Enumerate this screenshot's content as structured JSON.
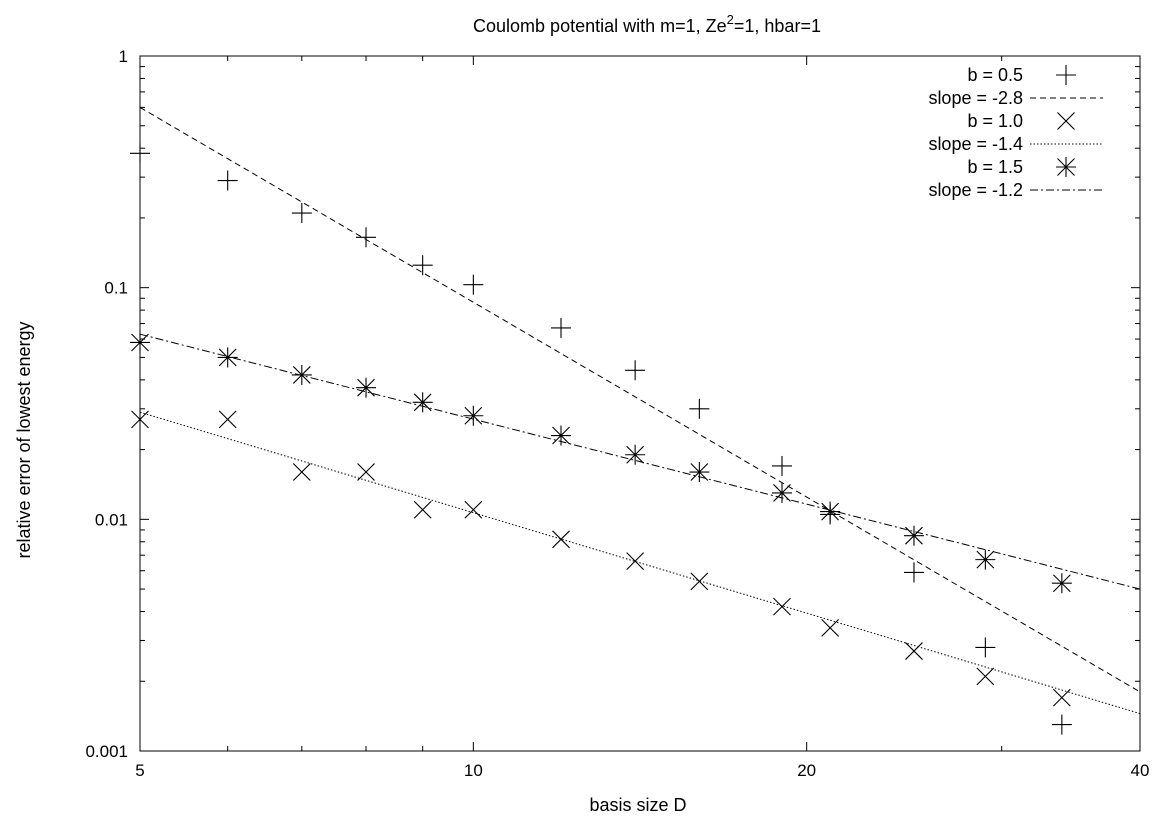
{
  "chart_data": {
    "type": "scatter",
    "title": "Coulomb potential with m=1, Ze",
    "title_superscript": "2",
    "title_suffix": "=1, hbar=1",
    "xlabel": "basis size D",
    "ylabel": "relative error of lowest energy",
    "x_scale": "log",
    "y_scale": "log",
    "xlim": [
      5,
      40
    ],
    "ylim": [
      0.001,
      1
    ],
    "xticks": [
      {
        "value": 5,
        "label": "5"
      },
      {
        "value": 10,
        "label": "10"
      },
      {
        "value": 20,
        "label": "20"
      },
      {
        "value": 40,
        "label": "40"
      }
    ],
    "yticks": [
      {
        "value": 0.001,
        "label": "0.001"
      },
      {
        "value": 0.01,
        "label": "0.01"
      },
      {
        "value": 0.1,
        "label": "0.1"
      },
      {
        "value": 1,
        "label": "1"
      }
    ],
    "legend_position": "top-right",
    "grid": false,
    "series": [
      {
        "name": "b = 0.5",
        "kind": "points",
        "marker": "plus",
        "points": [
          [
            5,
            0.38
          ],
          [
            6,
            0.29
          ],
          [
            7,
            0.21
          ],
          [
            8,
            0.165
          ],
          [
            9,
            0.125
          ],
          [
            10,
            0.103
          ],
          [
            12,
            0.067
          ],
          [
            14,
            0.044
          ],
          [
            16,
            0.03
          ],
          [
            19,
            0.017
          ],
          [
            21,
            0.0105
          ],
          [
            25,
            0.0059
          ],
          [
            29,
            0.0028
          ],
          [
            34,
            0.0013
          ]
        ]
      },
      {
        "name": "slope = -2.8",
        "kind": "line",
        "dash": "6,4",
        "points": [
          [
            5,
            0.6
          ],
          [
            40,
            0.0018
          ]
        ]
      },
      {
        "name": "b = 1.0",
        "kind": "points",
        "marker": "cross",
        "points": [
          [
            5,
            0.027
          ],
          [
            6,
            0.027
          ],
          [
            7,
            0.016
          ],
          [
            8,
            0.016
          ],
          [
            9,
            0.011
          ],
          [
            10,
            0.011
          ],
          [
            12,
            0.0082
          ],
          [
            14,
            0.0066
          ],
          [
            16,
            0.0054
          ],
          [
            19,
            0.0042
          ],
          [
            21,
            0.0034
          ],
          [
            25,
            0.0027
          ],
          [
            29,
            0.0021
          ],
          [
            34,
            0.0017
          ]
        ]
      },
      {
        "name": "slope = -1.4",
        "kind": "line",
        "dash": "1.5,2",
        "points": [
          [
            5,
            0.029
          ],
          [
            40,
            0.00145
          ]
        ]
      },
      {
        "name": "b = 1.5",
        "kind": "points",
        "marker": "star",
        "points": [
          [
            5,
            0.058
          ],
          [
            6,
            0.05
          ],
          [
            7,
            0.042
          ],
          [
            8,
            0.037
          ],
          [
            9,
            0.032
          ],
          [
            10,
            0.028
          ],
          [
            12,
            0.023
          ],
          [
            14,
            0.019
          ],
          [
            16,
            0.016
          ],
          [
            19,
            0.013
          ],
          [
            21,
            0.0108
          ],
          [
            25,
            0.0085
          ],
          [
            29,
            0.0067
          ],
          [
            34,
            0.0053
          ]
        ]
      },
      {
        "name": "slope = -1.2",
        "kind": "line",
        "dash": "8,3,2,3",
        "points": [
          [
            5,
            0.063
          ],
          [
            40,
            0.005
          ]
        ]
      }
    ]
  }
}
